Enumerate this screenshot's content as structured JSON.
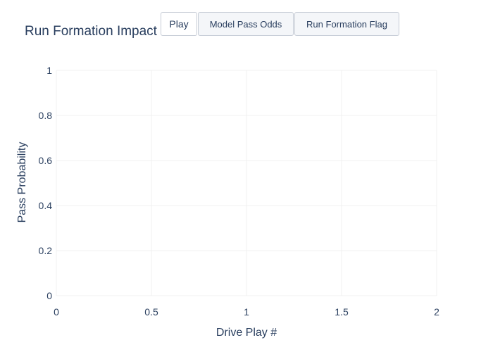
{
  "controls": {
    "buttons": [
      {
        "label": "Play"
      },
      {
        "label": "Model Pass Odds"
      },
      {
        "label": "Run Formation Flag"
      }
    ]
  },
  "chart_data": {
    "type": "scatter",
    "title": "Run Formation Impact",
    "xlabel": "Drive Play #",
    "ylabel": "Pass Probability",
    "xlim": [
      0,
      2
    ],
    "ylim": [
      0,
      1
    ],
    "xticks": [
      0,
      0.5,
      1,
      1.5,
      2
    ],
    "xtick_labels": [
      "0",
      "0.5",
      "1",
      "1.5",
      "2"
    ],
    "yticks": [
      0,
      0.2,
      0.4,
      0.6,
      0.8,
      1
    ],
    "ytick_labels": [
      "0",
      "0.2",
      "0.4",
      "0.6",
      "0.8",
      "1"
    ],
    "grid": true,
    "series": [],
    "colors": {
      "text": "#2a3f5f",
      "grid": "#f1f1f1",
      "background": "#ffffff"
    }
  }
}
